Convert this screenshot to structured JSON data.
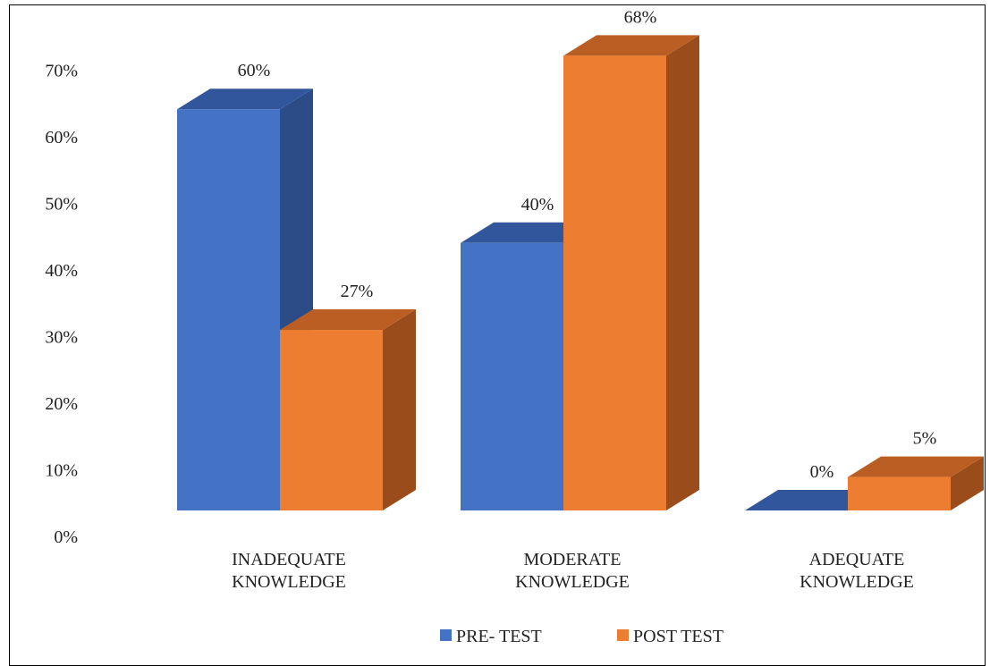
{
  "chart_data": {
    "type": "bar",
    "style": "3d-clustered-column",
    "categories": [
      "INADEQUATE KNOWLEDGE",
      "MODERATE KNOWLEDGE",
      "ADEQUATE KNOWLEDGE"
    ],
    "category_lines": [
      [
        "INADEQUATE",
        "KNOWLEDGE"
      ],
      [
        "MODERATE",
        "KNOWLEDGE"
      ],
      [
        "ADEQUATE",
        "KNOWLEDGE"
      ]
    ],
    "series": [
      {
        "name": "PRE- TEST",
        "values": [
          60,
          40,
          0
        ],
        "data_labels": [
          "60%",
          "40%",
          "0%"
        ],
        "color": "#4472C4",
        "side_color": "#2C4C87",
        "top_color": "#31569B"
      },
      {
        "name": "POST TEST",
        "values": [
          27,
          68,
          5
        ],
        "data_labels": [
          "27%",
          "68%",
          "5%"
        ],
        "color": "#ED7D31",
        "side_color": "#9A4D1B",
        "top_color": "#BB5E23"
      }
    ],
    "y_ticks": [
      "0%",
      "10%",
      "20%",
      "30%",
      "40%",
      "50%",
      "60%",
      "70%"
    ],
    "ylim": [
      0,
      70
    ],
    "grid": false,
    "legend_position": "bottom"
  }
}
